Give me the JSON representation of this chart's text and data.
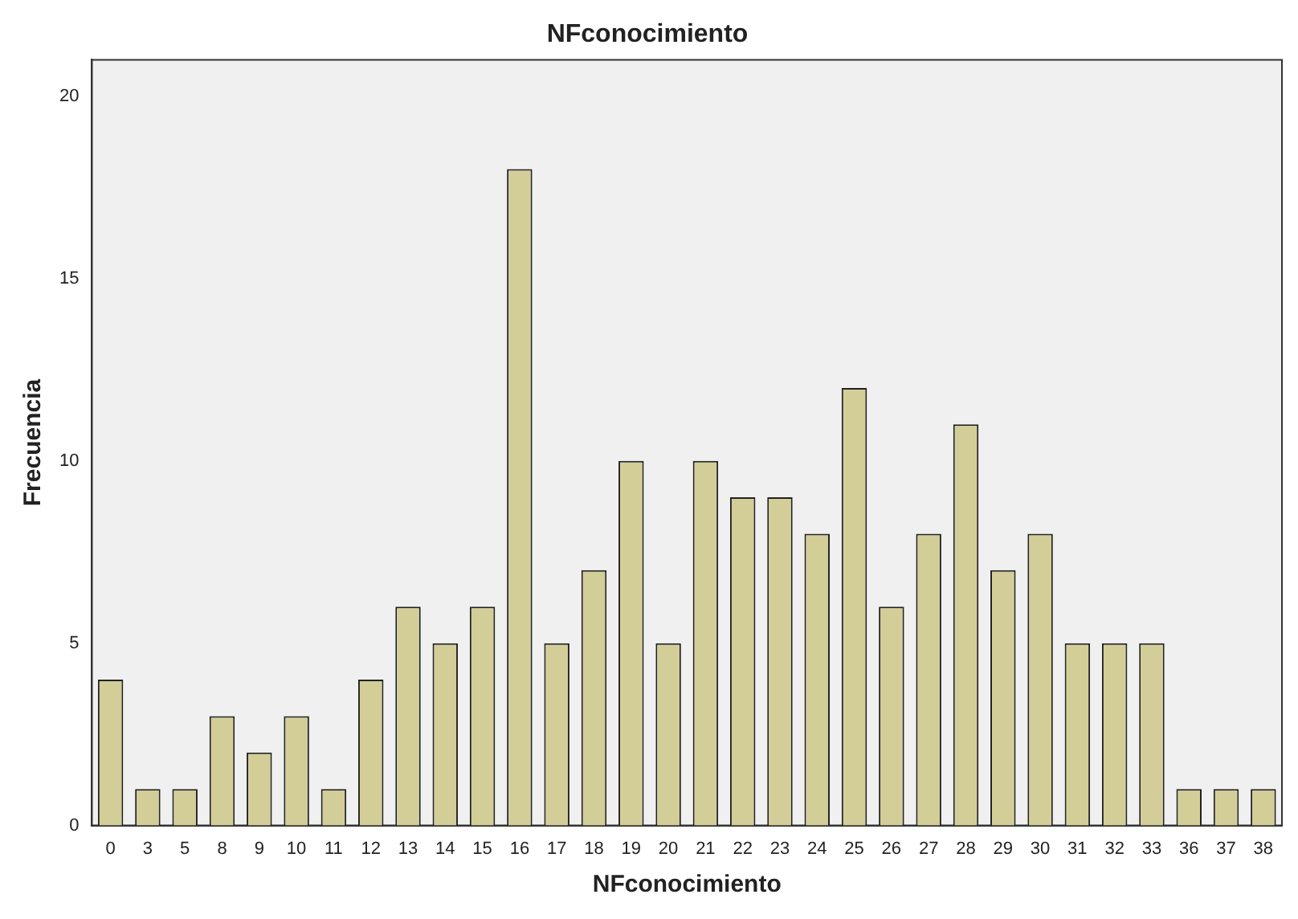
{
  "chart_data": {
    "type": "bar",
    "title": "NFconocimiento",
    "xlabel": "NFconocimiento",
    "ylabel": "Frecuencia",
    "categories": [
      "0",
      "3",
      "5",
      "8",
      "9",
      "10",
      "11",
      "12",
      "13",
      "14",
      "15",
      "16",
      "17",
      "18",
      "19",
      "20",
      "21",
      "22",
      "23",
      "24",
      "25",
      "26",
      "27",
      "28",
      "29",
      "30",
      "31",
      "32",
      "33",
      "36",
      "37",
      "38"
    ],
    "values": [
      4,
      1,
      1,
      3,
      2,
      3,
      1,
      4,
      6,
      5,
      6,
      18,
      5,
      7,
      10,
      5,
      10,
      9,
      9,
      8,
      12,
      6,
      8,
      11,
      7,
      8,
      5,
      5,
      5,
      1,
      1,
      1
    ],
    "color": "#d3ce98",
    "ylim": [
      0,
      21
    ],
    "yticks": [
      0,
      5,
      10,
      15,
      20
    ],
    "grid": false,
    "legend": false
  }
}
